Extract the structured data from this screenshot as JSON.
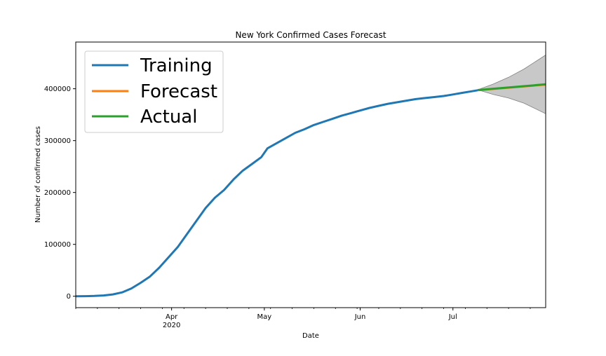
{
  "chart_data": {
    "type": "line",
    "title": "New York Confirmed Cases Forecast",
    "xlabel": "Date",
    "ylabel": "Number of confirmed cases",
    "xlim": [
      "2020-03-01",
      "2020-07-31"
    ],
    "ylim": [
      -22000,
      490000
    ],
    "x_ticks": [
      {
        "date": "2020-04-01",
        "label": "Apr",
        "sublabel": "2020"
      },
      {
        "date": "2020-05-01",
        "label": "May"
      },
      {
        "date": "2020-06-01",
        "label": "Jun"
      },
      {
        "date": "2020-07-01",
        "label": "Jul"
      }
    ],
    "y_ticks": [
      {
        "value": 0,
        "label": "0"
      },
      {
        "value": 100000,
        "label": "100000"
      },
      {
        "value": 200000,
        "label": "200000"
      },
      {
        "value": 300000,
        "label": "300000"
      },
      {
        "value": 400000,
        "label": "400000"
      }
    ],
    "grid": false,
    "legend": {
      "position": "top-left",
      "entries": [
        "Training",
        "Forecast",
        "Actual"
      ]
    },
    "series": [
      {
        "name": "Training",
        "color": "#1f77b4",
        "points": [
          [
            "2020-03-01",
            0
          ],
          [
            "2020-03-04",
            200
          ],
          [
            "2020-03-07",
            500
          ],
          [
            "2020-03-10",
            1500
          ],
          [
            "2020-03-13",
            3500
          ],
          [
            "2020-03-16",
            7500
          ],
          [
            "2020-03-19",
            15000
          ],
          [
            "2020-03-22",
            26000
          ],
          [
            "2020-03-25",
            38000
          ],
          [
            "2020-03-28",
            55000
          ],
          [
            "2020-03-31",
            75000
          ],
          [
            "2020-04-03",
            95000
          ],
          [
            "2020-04-06",
            120000
          ],
          [
            "2020-04-09",
            145000
          ],
          [
            "2020-04-12",
            170000
          ],
          [
            "2020-04-15",
            190000
          ],
          [
            "2020-04-18",
            205000
          ],
          [
            "2020-04-21",
            225000
          ],
          [
            "2020-04-24",
            242000
          ],
          [
            "2020-04-27",
            255000
          ],
          [
            "2020-04-30",
            268000
          ],
          [
            "2020-05-02",
            285000
          ],
          [
            "2020-05-05",
            295000
          ],
          [
            "2020-05-08",
            305000
          ],
          [
            "2020-05-11",
            315000
          ],
          [
            "2020-05-14",
            322000
          ],
          [
            "2020-05-17",
            330000
          ],
          [
            "2020-05-20",
            336000
          ],
          [
            "2020-05-23",
            342000
          ],
          [
            "2020-05-26",
            348000
          ],
          [
            "2020-05-29",
            353000
          ],
          [
            "2020-06-01",
            358000
          ],
          [
            "2020-06-04",
            363000
          ],
          [
            "2020-06-07",
            367000
          ],
          [
            "2020-06-10",
            371000
          ],
          [
            "2020-06-13",
            374000
          ],
          [
            "2020-06-16",
            377000
          ],
          [
            "2020-06-19",
            380000
          ],
          [
            "2020-06-22",
            382000
          ],
          [
            "2020-06-25",
            384000
          ],
          [
            "2020-06-28",
            386000
          ],
          [
            "2020-07-01",
            389000
          ],
          [
            "2020-07-04",
            392000
          ],
          [
            "2020-07-07",
            395000
          ],
          [
            "2020-07-09",
            397000
          ]
        ]
      },
      {
        "name": "Forecast",
        "color": "#ff7f0e",
        "points": [
          [
            "2020-07-09",
            397000
          ],
          [
            "2020-07-31",
            408000
          ]
        ]
      },
      {
        "name": "Actual",
        "color": "#2ca02c",
        "points": [
          [
            "2020-07-09",
            397500
          ],
          [
            "2020-07-31",
            408500
          ]
        ]
      }
    ],
    "confidence_band": {
      "color": "#c8c8c8",
      "points": [
        [
          "2020-07-09",
          398000,
          398000
        ],
        [
          "2020-07-14",
          409000,
          389000
        ],
        [
          "2020-07-19",
          422000,
          382000
        ],
        [
          "2020-07-24",
          438000,
          372000
        ],
        [
          "2020-07-31",
          465000,
          352000
        ]
      ]
    }
  }
}
